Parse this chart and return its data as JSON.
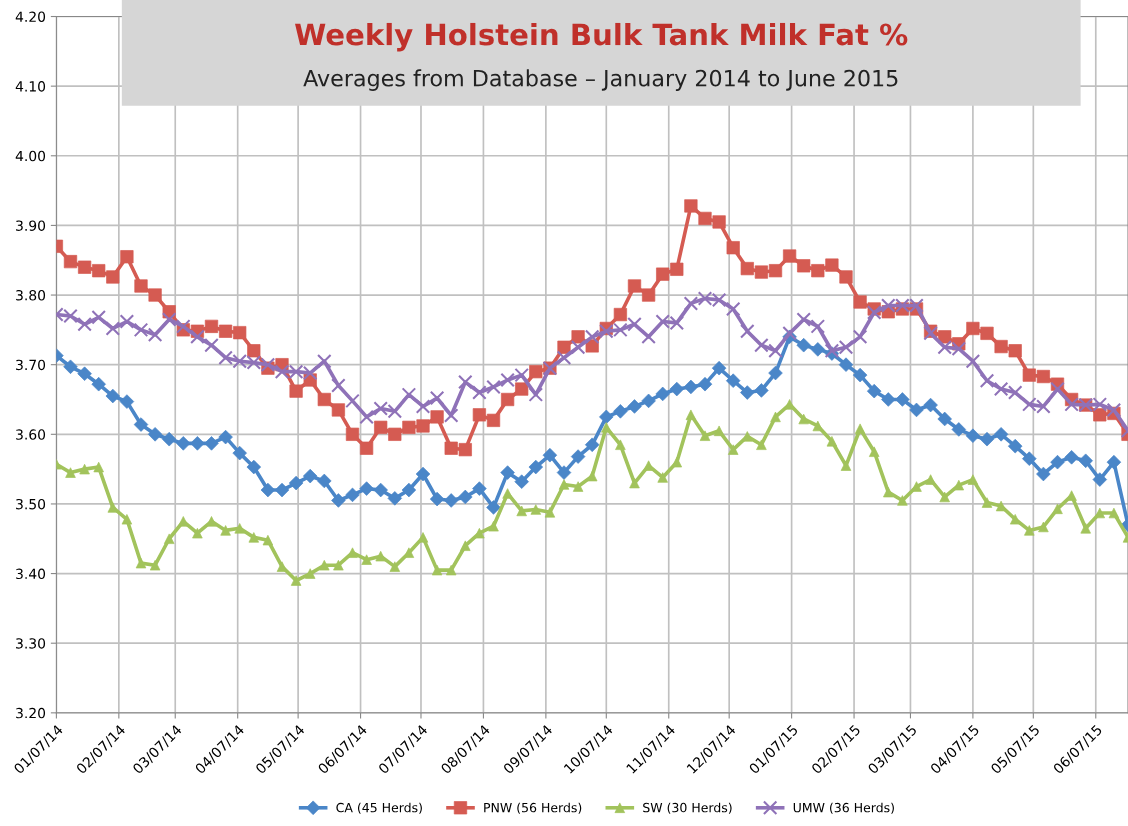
{
  "chart_data": {
    "type": "line",
    "title": "Weekly Holstein Bulk Tank Milk Fat %",
    "subtitle": "Averages from Database – January 2014 to June 2015",
    "x": [
      "2014-01-07",
      "2014-01-14",
      "2014-01-21",
      "2014-01-28",
      "2014-02-04",
      "2014-02-11",
      "2014-02-18",
      "2014-02-25",
      "2014-03-04",
      "2014-03-11",
      "2014-03-18",
      "2014-03-25",
      "2014-04-01",
      "2014-04-08",
      "2014-04-15",
      "2014-04-22",
      "2014-04-29",
      "2014-05-06",
      "2014-05-13",
      "2014-05-20",
      "2014-05-27",
      "2014-06-03",
      "2014-06-10",
      "2014-06-17",
      "2014-06-24",
      "2014-07-01",
      "2014-07-08",
      "2014-07-15",
      "2014-07-22",
      "2014-07-29",
      "2014-08-05",
      "2014-08-12",
      "2014-08-19",
      "2014-08-26",
      "2014-09-02",
      "2014-09-09",
      "2014-09-16",
      "2014-09-23",
      "2014-09-30",
      "2014-10-07",
      "2014-10-14",
      "2014-10-21",
      "2014-10-28",
      "2014-11-04",
      "2014-11-11",
      "2014-11-18",
      "2014-11-25",
      "2014-12-02",
      "2014-12-09",
      "2014-12-16",
      "2014-12-23",
      "2014-12-30",
      "2015-01-06",
      "2015-01-13",
      "2015-01-20",
      "2015-01-27",
      "2015-02-03",
      "2015-02-10",
      "2015-02-17",
      "2015-02-24",
      "2015-03-03",
      "2015-03-10",
      "2015-03-17",
      "2015-03-24",
      "2015-03-31",
      "2015-04-07",
      "2015-04-14",
      "2015-04-21",
      "2015-04-28",
      "2015-05-05",
      "2015-05-12",
      "2015-05-19",
      "2015-05-26",
      "2015-06-02",
      "2015-06-09",
      "2015-06-16",
      "2015-06-23"
    ],
    "series": [
      {
        "name": "CA (45 Herds)",
        "color": "#4a86c8",
        "marker": "diamond",
        "values": [
          3.713,
          3.697,
          3.687,
          3.672,
          3.655,
          3.647,
          3.614,
          3.6,
          3.593,
          3.587,
          3.587,
          3.587,
          3.596,
          3.573,
          3.553,
          3.52,
          3.52,
          3.53,
          3.54,
          3.533,
          3.505,
          3.513,
          3.522,
          3.52,
          3.508,
          3.52,
          3.543,
          3.507,
          3.505,
          3.51,
          3.522,
          3.495,
          3.545,
          3.532,
          3.553,
          3.57,
          3.545,
          3.568,
          3.585,
          3.625,
          3.633,
          3.64,
          3.648,
          3.658,
          3.665,
          3.668,
          3.672,
          3.695,
          3.677,
          3.66,
          3.663,
          3.688,
          3.74,
          3.728,
          3.722,
          3.716,
          3.7,
          3.685,
          3.662,
          3.65,
          3.65,
          3.635,
          3.642,
          3.622,
          3.607,
          3.598,
          3.593,
          3.6,
          3.583,
          3.565,
          3.543,
          3.56,
          3.567,
          3.562,
          3.535,
          3.56,
          3.47
        ]
      },
      {
        "name": "PNW (56 Herds)",
        "color": "#d55b52",
        "marker": "square",
        "values": [
          3.87,
          3.848,
          3.84,
          3.835,
          3.826,
          3.855,
          3.813,
          3.8,
          3.776,
          3.75,
          3.748,
          3.755,
          3.748,
          3.746,
          3.72,
          3.695,
          3.7,
          3.662,
          3.678,
          3.65,
          3.635,
          3.6,
          3.58,
          3.61,
          3.6,
          3.61,
          3.612,
          3.625,
          3.58,
          3.578,
          3.628,
          3.62,
          3.65,
          3.665,
          3.69,
          3.695,
          3.725,
          3.74,
          3.727,
          3.752,
          3.772,
          3.813,
          3.8,
          3.83,
          3.837,
          3.928,
          3.91,
          3.905,
          3.868,
          3.838,
          3.833,
          3.835,
          3.856,
          3.842,
          3.835,
          3.843,
          3.826,
          3.79,
          3.78,
          3.776,
          3.78,
          3.78,
          3.748,
          3.74,
          3.73,
          3.752,
          3.745,
          3.726,
          3.72,
          3.685,
          3.683,
          3.672,
          3.65,
          3.642,
          3.628,
          3.63,
          3.6
        ]
      },
      {
        "name": "SW (30 Herds)",
        "color": "#a2c35c",
        "marker": "triangle",
        "values": [
          3.557,
          3.545,
          3.55,
          3.553,
          3.495,
          3.478,
          3.415,
          3.412,
          3.45,
          3.475,
          3.458,
          3.475,
          3.462,
          3.465,
          3.452,
          3.448,
          3.41,
          3.39,
          3.4,
          3.412,
          3.412,
          3.43,
          3.42,
          3.425,
          3.41,
          3.43,
          3.452,
          3.405,
          3.405,
          3.44,
          3.458,
          3.468,
          3.515,
          3.49,
          3.492,
          3.488,
          3.528,
          3.525,
          3.54,
          3.61,
          3.585,
          3.53,
          3.555,
          3.538,
          3.56,
          3.628,
          3.598,
          3.605,
          3.578,
          3.597,
          3.585,
          3.625,
          3.643,
          3.622,
          3.612,
          3.59,
          3.555,
          3.608,
          3.575,
          3.517,
          3.505,
          3.525,
          3.535,
          3.51,
          3.527,
          3.535,
          3.502,
          3.497,
          3.478,
          3.462,
          3.467,
          3.493,
          3.512,
          3.465,
          3.487,
          3.487,
          3.452
        ]
      },
      {
        "name": "UMW (36 Herds)",
        "color": "#8f72b8",
        "marker": "cross",
        "values": [
          3.772,
          3.77,
          3.758,
          3.768,
          3.752,
          3.762,
          3.75,
          3.743,
          3.765,
          3.755,
          3.74,
          3.728,
          3.71,
          3.705,
          3.703,
          3.7,
          3.69,
          3.69,
          3.688,
          3.705,
          3.67,
          3.648,
          3.625,
          3.637,
          3.633,
          3.657,
          3.64,
          3.652,
          3.627,
          3.675,
          3.66,
          3.668,
          3.678,
          3.685,
          3.657,
          3.695,
          3.71,
          3.725,
          3.74,
          3.748,
          3.75,
          3.758,
          3.74,
          3.762,
          3.76,
          3.788,
          3.795,
          3.793,
          3.78,
          3.748,
          3.728,
          3.72,
          3.745,
          3.765,
          3.755,
          3.72,
          3.725,
          3.74,
          3.775,
          3.785,
          3.785,
          3.785,
          3.745,
          3.725,
          3.723,
          3.705,
          3.677,
          3.665,
          3.66,
          3.643,
          3.64,
          3.665,
          3.643,
          3.642,
          3.643,
          3.635,
          3.605
        ]
      }
    ],
    "xlim": [
      "2014-01-07",
      "2015-06-23"
    ],
    "xticks": [
      {
        "value": "2014-01-07",
        "label": "01/07/14"
      },
      {
        "value": "2014-02-07",
        "label": "02/07/14"
      },
      {
        "value": "2014-03-07",
        "label": "03/07/14"
      },
      {
        "value": "2014-04-07",
        "label": "04/07/14"
      },
      {
        "value": "2014-05-07",
        "label": "05/07/14"
      },
      {
        "value": "2014-06-07",
        "label": "06/07/14"
      },
      {
        "value": "2014-07-07",
        "label": "07/07/14"
      },
      {
        "value": "2014-08-07",
        "label": "08/07/14"
      },
      {
        "value": "2014-09-07",
        "label": "09/07/14"
      },
      {
        "value": "2014-10-07",
        "label": "10/07/14"
      },
      {
        "value": "2014-11-07",
        "label": "11/07/14"
      },
      {
        "value": "2014-12-07",
        "label": "12/07/14"
      },
      {
        "value": "2015-01-07",
        "label": "01/07/15"
      },
      {
        "value": "2015-02-07",
        "label": "02/07/15"
      },
      {
        "value": "2015-03-07",
        "label": "03/07/15"
      },
      {
        "value": "2015-04-07",
        "label": "04/07/15"
      },
      {
        "value": "2015-05-07",
        "label": "05/07/15"
      },
      {
        "value": "2015-06-07",
        "label": "06/07/15"
      }
    ],
    "ylim": [
      3.2,
      4.2
    ],
    "yticks": [
      {
        "value": 3.2,
        "label": "3.20"
      },
      {
        "value": 3.3,
        "label": "3.30"
      },
      {
        "value": 3.4,
        "label": "3.40"
      },
      {
        "value": 3.5,
        "label": "3.50"
      },
      {
        "value": 3.6,
        "label": "3.60"
      },
      {
        "value": 3.7,
        "label": "3.70"
      },
      {
        "value": 3.8,
        "label": "3.80"
      },
      {
        "value": 3.9,
        "label": "3.90"
      },
      {
        "value": 4.0,
        "label": "4.00"
      },
      {
        "value": 4.1,
        "label": "4.10"
      },
      {
        "value": 4.2,
        "label": "4.20"
      }
    ],
    "grid": true,
    "legend": "bottom",
    "line_style": "solid"
  }
}
